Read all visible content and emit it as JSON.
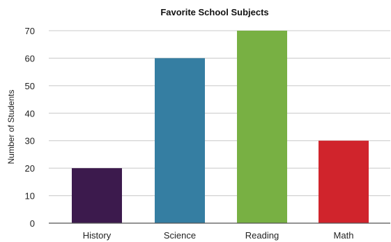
{
  "chart_data": {
    "type": "bar",
    "title": "Favorite School Subjects",
    "xlabel": "",
    "ylabel": "Number of Students",
    "categories": [
      "History",
      "Science",
      "Reading",
      "Math"
    ],
    "values": [
      20,
      60,
      70,
      30
    ],
    "colors": [
      "#3c1a4d",
      "#357ea2",
      "#78b043",
      "#d0242c"
    ],
    "ylim": [
      0,
      70
    ],
    "yticks": [
      0,
      10,
      20,
      30,
      40,
      50,
      60,
      70
    ],
    "grid": true,
    "legend": "none"
  }
}
